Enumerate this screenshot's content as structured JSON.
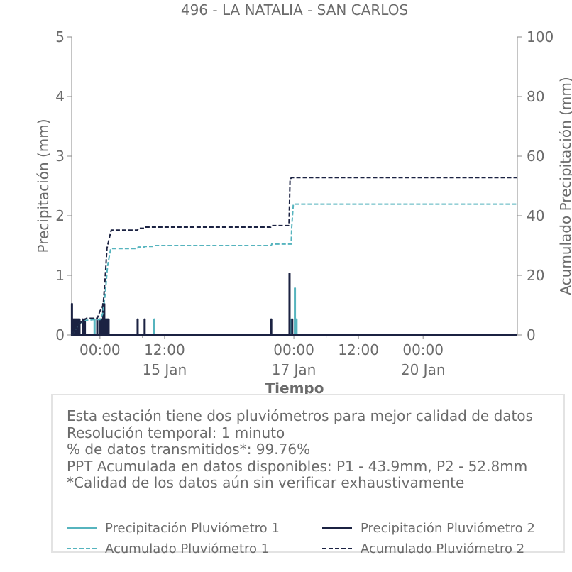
{
  "chart_data": {
    "type": "bar+line",
    "title": "496 - LA NATALIA - SAN CARLOS",
    "xlabel": "Tiempo",
    "ylabel_left": "Precipitación (mm)",
    "ylabel_right": "Acumulado Precipitación (mm)",
    "ylim_left": [
      0,
      5
    ],
    "ylim_right": [
      0,
      100
    ],
    "yticks_left": [
      "0",
      "1",
      "2",
      "3",
      "4",
      "5"
    ],
    "yticks_right": [
      "0",
      "20",
      "40",
      "60",
      "80",
      "100"
    ],
    "x_range_hours": [
      -5.25,
      77.5
    ],
    "x_ticks": [
      {
        "hour": 0,
        "label": "00:00",
        "sublabel": ""
      },
      {
        "hour": 12,
        "label": "12:00",
        "sublabel": "15 Jan"
      },
      {
        "hour": 36,
        "label": "00:00",
        "sublabel": "17 Jan"
      },
      {
        "hour": 48,
        "label": "12:00",
        "sublabel": ""
      },
      {
        "hour": 60,
        "label": "00:00",
        "sublabel": "20 Jan"
      }
    ],
    "minor_tick_hours": [
      7.9,
      42
    ],
    "colors": {
      "p1": "#56b4be",
      "p2": "#1b2242",
      "text": "#6b6b6b",
      "axis": "#888888"
    },
    "series": [
      {
        "name": "Precipitación Pluviómetro 1",
        "kind": "bars",
        "axis": "left",
        "color": "#56b4be",
        "points": [
          [
            -1.0,
            0.26
          ],
          [
            0.15,
            0.26
          ],
          [
            10.1,
            0.26
          ],
          [
            35.6,
            0.26
          ],
          [
            36.2,
            0.78
          ],
          [
            36.5,
            0.26
          ]
        ]
      },
      {
        "name": "Precipitación Pluviómetro 2",
        "kind": "bars",
        "axis": "left",
        "color": "#1b2242",
        "points": [
          [
            -5.2,
            0.52
          ],
          [
            -5.0,
            0.26
          ],
          [
            -4.8,
            0.26
          ],
          [
            -4.6,
            0.26
          ],
          [
            -4.4,
            0.26
          ],
          [
            -4.2,
            0.26
          ],
          [
            -4.0,
            0.26
          ],
          [
            -3.8,
            0.26
          ],
          [
            -3.2,
            0.26
          ],
          [
            -2.8,
            0.26
          ],
          [
            -0.5,
            0.26
          ],
          [
            0.0,
            0.26
          ],
          [
            0.4,
            0.26
          ],
          [
            0.6,
            0.52
          ],
          [
            0.8,
            0.52
          ],
          [
            1.0,
            0.26
          ],
          [
            1.2,
            0.26
          ],
          [
            1.4,
            0.26
          ],
          [
            1.6,
            0.26
          ],
          [
            7.0,
            0.26
          ],
          [
            8.3,
            0.26
          ],
          [
            31.8,
            0.26
          ],
          [
            35.2,
            1.03
          ],
          [
            35.7,
            0.26
          ]
        ]
      },
      {
        "name": "Acumulado Pluviómetro 1",
        "kind": "line",
        "dashed": true,
        "axis": "right",
        "color": "#56b4be",
        "points": [
          [
            -5.2,
            0.0
          ],
          [
            -4.0,
            3.5
          ],
          [
            -3.0,
            4.8
          ],
          [
            -1.0,
            5.2
          ],
          [
            0.0,
            5.2
          ],
          [
            0.5,
            7.0
          ],
          [
            1.0,
            14.0
          ],
          [
            1.4,
            23.0
          ],
          [
            1.7,
            26.0
          ],
          [
            2.0,
            29.0
          ],
          [
            7.0,
            29.0
          ],
          [
            7.1,
            29.5
          ],
          [
            8.2,
            29.5
          ],
          [
            8.3,
            29.7
          ],
          [
            10.0,
            29.7
          ],
          [
            10.1,
            30.0
          ],
          [
            30.0,
            30.0
          ],
          [
            31.8,
            30.0
          ],
          [
            31.9,
            30.5
          ],
          [
            35.5,
            30.5
          ],
          [
            35.6,
            36.0
          ],
          [
            35.9,
            43.9
          ],
          [
            77.5,
            43.9
          ]
        ]
      },
      {
        "name": "Acumulado Pluviómetro 2",
        "kind": "line",
        "dashed": true,
        "axis": "right",
        "color": "#1b2242",
        "points": [
          [
            -5.2,
            0.0
          ],
          [
            -4.2,
            3.0
          ],
          [
            -3.4,
            4.5
          ],
          [
            -2.5,
            5.6
          ],
          [
            -0.5,
            5.6
          ],
          [
            0.0,
            8.0
          ],
          [
            0.6,
            10.0
          ],
          [
            1.0,
            20.0
          ],
          [
            1.3,
            29.0
          ],
          [
            1.8,
            33.0
          ],
          [
            2.1,
            35.2
          ],
          [
            7.0,
            35.2
          ],
          [
            7.1,
            35.8
          ],
          [
            8.2,
            35.8
          ],
          [
            8.3,
            36.2
          ],
          [
            31.7,
            36.2
          ],
          [
            31.8,
            36.7
          ],
          [
            35.1,
            36.7
          ],
          [
            35.3,
            52.3
          ],
          [
            35.6,
            52.8
          ],
          [
            77.5,
            52.8
          ]
        ]
      }
    ]
  },
  "info": {
    "lines": [
      "Esta estación tiene dos pluviómetros para mejor calidad de datos",
      "Resolución temporal: 1 minuto",
      "% de datos transmitidos*: 99.76%",
      "PPT Acumulada en datos disponibles: P1 - 43.9mm, P2 - 52.8mm",
      "*Calidad de los datos aún sin verificar exhaustivamente"
    ]
  },
  "legend": {
    "items": [
      {
        "label": "Precipitación Pluviómetro 1",
        "color": "#56b4be",
        "style": "solid"
      },
      {
        "label": "Precipitación Pluviómetro 2",
        "color": "#1b2242",
        "style": "solid"
      },
      {
        "label": "Acumulado Pluviómetro 1",
        "color": "#56b4be",
        "style": "dashed"
      },
      {
        "label": "Acumulado Pluviómetro 2",
        "color": "#1b2242",
        "style": "dashed"
      }
    ]
  }
}
